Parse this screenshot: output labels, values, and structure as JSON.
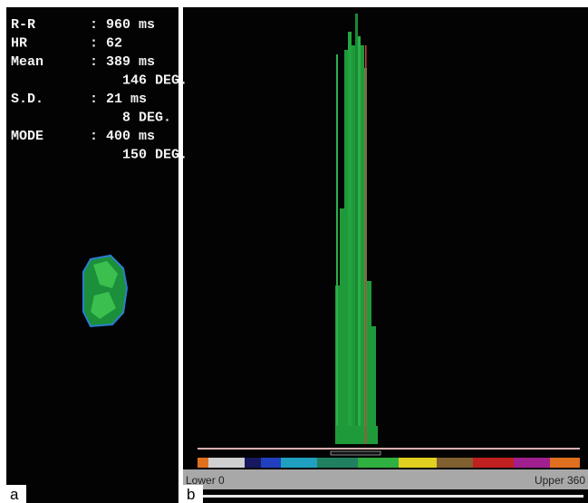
{
  "panel_a": {
    "label": "a",
    "separator": ":",
    "stats": [
      {
        "name": "R-R",
        "value": "960 ms"
      },
      {
        "name": "HR",
        "value": "62"
      },
      {
        "name": "Mean",
        "value": "389 ms",
        "extra": "146 DEG."
      },
      {
        "name": "S.D.",
        "value": "21 ms",
        "extra": "8 DEG."
      },
      {
        "name": "MODE",
        "value": "400 ms",
        "extra": "150 DEG."
      }
    ]
  },
  "panel_b": {
    "label": "b",
    "lower": "Lower 0",
    "upper": "Upper 360"
  }
}
